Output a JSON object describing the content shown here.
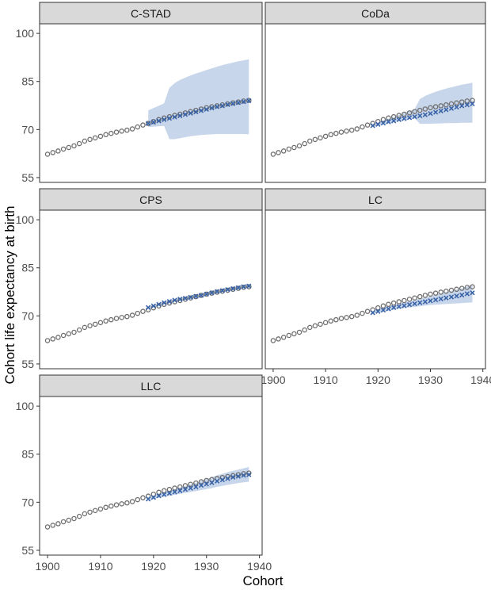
{
  "chart_data": {
    "type": "scatter",
    "layout": "facet-grid",
    "ylabel": "Cohort life expectancy at birth",
    "xlabel": "Cohort",
    "xlim": [
      1898.5,
      1940.5
    ],
    "ylim": [
      53.5,
      103
    ],
    "x_ticks": [
      1900,
      1910,
      1920,
      1930,
      1940
    ],
    "y_ticks": [
      55,
      70,
      85,
      100
    ],
    "grid": false,
    "colors": {
      "observed": "#6e6e6e",
      "forecast": "#3a64a8",
      "band": "#c5d4ea",
      "strip": "#d9d9d9",
      "panel_border": "#333333"
    },
    "observed": {
      "marker": "circle",
      "x": [
        1900,
        1901,
        1902,
        1903,
        1904,
        1905,
        1906,
        1907,
        1908,
        1909,
        1910,
        1911,
        1912,
        1913,
        1914,
        1915,
        1916,
        1917,
        1918,
        1919,
        1920,
        1921,
        1922,
        1923,
        1924,
        1925,
        1926,
        1927,
        1928,
        1929,
        1930,
        1931,
        1932,
        1933,
        1934,
        1935,
        1936,
        1937,
        1938
      ],
      "values": [
        62.3,
        62.8,
        63.3,
        63.9,
        64.4,
        64.9,
        65.6,
        66.4,
        66.9,
        67.4,
        67.9,
        68.4,
        68.8,
        69.2,
        69.5,
        69.8,
        70.2,
        70.8,
        71.4,
        71.9,
        72.5,
        73.1,
        73.6,
        74.0,
        74.4,
        74.8,
        75.2,
        75.6,
        76.0,
        76.4,
        76.8,
        77.1,
        77.4,
        77.7,
        78.0,
        78.3,
        78.6,
        78.9,
        79.1
      ]
    },
    "forecast_x": [
      1919,
      1920,
      1921,
      1922,
      1923,
      1924,
      1925,
      1926,
      1927,
      1928,
      1929,
      1930,
      1931,
      1932,
      1933,
      1934,
      1935,
      1936,
      1937,
      1938
    ],
    "panels": [
      {
        "title": "C-STAD",
        "forecast": [
          71.9,
          72.3,
          72.7,
          73.1,
          73.5,
          73.9,
          74.3,
          74.7,
          75.1,
          75.5,
          75.9,
          76.3,
          76.7,
          77.1,
          77.4,
          77.8,
          78.1,
          78.4,
          78.7,
          79.0
        ],
        "lower": [
          70.8,
          70.9,
          71.0,
          71.1,
          67.0,
          67.0,
          67.3,
          67.6,
          67.9,
          68.1,
          68.3,
          68.4,
          68.5,
          68.6,
          68.6,
          68.6,
          68.6,
          68.6,
          68.6,
          68.5
        ],
        "upper": [
          76.0,
          76.7,
          77.4,
          78.2,
          83.0,
          84.5,
          85.5,
          86.2,
          86.9,
          87.5,
          88.0,
          88.6,
          89.1,
          89.6,
          90.1,
          90.5,
          90.9,
          91.3,
          91.6,
          91.9
        ]
      },
      {
        "title": "CoDa",
        "forecast": [
          71.2,
          71.6,
          72.0,
          72.4,
          72.7,
          73.1,
          73.4,
          73.7,
          74.0,
          74.3,
          74.6,
          75.0,
          75.4,
          75.8,
          76.2,
          76.6,
          77.0,
          77.4,
          77.7,
          78.0
        ],
        "lower": [
          70.9,
          71.2,
          71.6,
          71.9,
          72.3,
          72.6,
          72.9,
          73.2,
          73.5,
          71.8,
          71.8,
          71.8,
          71.9,
          71.9,
          72.0,
          72.0,
          72.0,
          72.1,
          72.1,
          72.1
        ],
        "upper": [
          71.8,
          72.3,
          72.8,
          73.4,
          74.0,
          74.6,
          75.2,
          75.8,
          76.4,
          79.5,
          80.5,
          81.2,
          81.8,
          82.3,
          82.8,
          83.2,
          83.6,
          84.0,
          84.3,
          84.6
        ]
      },
      {
        "title": "CPS",
        "forecast": [
          72.6,
          73.1,
          73.6,
          74.1,
          74.5,
          74.9,
          75.2,
          75.5,
          75.8,
          76.1,
          76.4,
          76.8,
          77.2,
          77.6,
          77.9,
          78.2,
          78.5,
          78.8,
          79.1,
          79.3
        ],
        "lower": [
          72.2,
          72.7,
          73.2,
          73.6,
          74.0,
          74.4,
          74.7,
          75.0,
          75.3,
          75.6,
          75.9,
          76.3,
          76.7,
          77.0,
          77.4,
          77.7,
          78.0,
          78.3,
          78.5,
          78.7
        ],
        "upper": [
          73.0,
          73.5,
          74.0,
          74.5,
          74.9,
          75.3,
          75.7,
          76.0,
          76.3,
          76.7,
          77.0,
          77.4,
          77.8,
          78.2,
          78.5,
          78.8,
          79.1,
          79.4,
          79.7,
          79.9
        ]
      },
      {
        "title": "LC",
        "forecast": [
          71.0,
          71.4,
          71.8,
          72.2,
          72.6,
          72.9,
          73.2,
          73.5,
          73.8,
          74.1,
          74.4,
          74.7,
          75.0,
          75.3,
          75.6,
          75.9,
          76.2,
          76.5,
          76.9,
          77.2
        ],
        "lower": [
          70.7,
          71.0,
          71.3,
          71.6,
          71.9,
          72.2,
          72.4,
          72.6,
          72.8,
          73.0,
          73.2,
          73.4,
          73.5,
          73.6,
          73.7,
          73.8,
          73.9,
          74.0,
          74.1,
          74.2
        ],
        "upper": [
          71.4,
          71.9,
          72.4,
          72.9,
          73.4,
          73.8,
          74.2,
          74.6,
          75.0,
          75.4,
          75.8,
          76.2,
          76.6,
          77.0,
          77.4,
          77.8,
          78.2,
          78.6,
          79.2,
          79.6
        ]
      },
      {
        "title": "LLC",
        "forecast": [
          71.0,
          71.5,
          72.0,
          72.4,
          72.8,
          73.2,
          73.6,
          74.0,
          74.4,
          74.8,
          75.3,
          75.7,
          76.1,
          76.6,
          77.0,
          77.4,
          77.8,
          78.1,
          78.4,
          78.6
        ],
        "lower": [
          70.7,
          71.0,
          71.4,
          71.7,
          72.0,
          72.3,
          72.6,
          72.9,
          73.2,
          73.5,
          73.8,
          74.1,
          74.4,
          74.8,
          75.1,
          75.4,
          75.7,
          76.0,
          76.2,
          76.4
        ],
        "upper": [
          71.3,
          71.9,
          72.5,
          73.1,
          73.6,
          74.1,
          74.6,
          75.1,
          75.6,
          76.1,
          76.7,
          77.3,
          77.8,
          78.4,
          78.9,
          79.4,
          79.8,
          80.2,
          80.6,
          81.0
        ]
      }
    ]
  }
}
